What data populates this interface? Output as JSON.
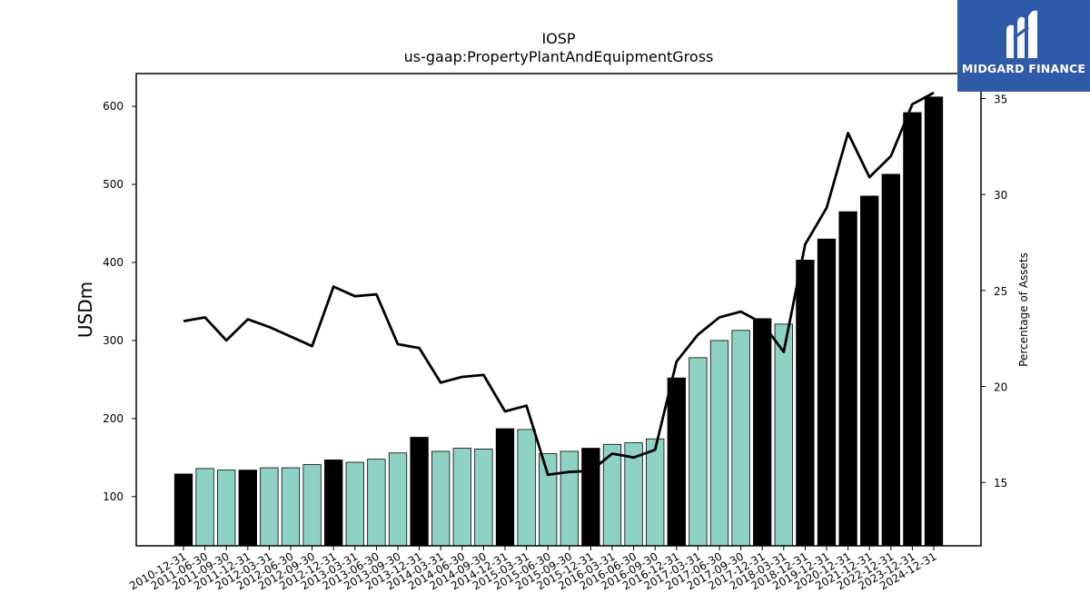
{
  "chart_data": {
    "type": "bar",
    "title": "IOSP",
    "subtitle": "us-gaap:PropertyPlantAndEquipmentGross",
    "ylabel": "USDm",
    "y2label": "Percentage of Assets",
    "ylim": [
      37,
      642
    ],
    "y2lim": [
      11.7,
      36.3
    ],
    "yticks": [
      100,
      200,
      300,
      400,
      500,
      600
    ],
    "y2ticks": [
      15,
      20,
      25,
      30,
      35
    ],
    "categories": [
      "2010-12-31",
      "2011-06-30",
      "2011-09-30",
      "2011-12-31",
      "2012-03-31",
      "2012-06-30",
      "2012-09-30",
      "2012-12-31",
      "2013-03-31",
      "2013-06-30",
      "2013-09-30",
      "2013-12-31",
      "2014-03-31",
      "2014-06-30",
      "2014-09-30",
      "2014-12-31",
      "2015-03-31",
      "2015-06-30",
      "2015-09-30",
      "2015-12-31",
      "2016-03-31",
      "2016-06-30",
      "2016-09-30",
      "2016-12-31",
      "2017-03-31",
      "2017-06-30",
      "2017-09-30",
      "2017-12-31",
      "2018-03-31",
      "2018-12-31",
      "2019-12-31",
      "2020-12-31",
      "2021-12-31",
      "2022-12-31",
      "2023-12-31",
      "2024-12-31"
    ],
    "series": [
      {
        "type": "bar",
        "axis": "left",
        "values": [
          129,
          136,
          134,
          134,
          137,
          137,
          141,
          147,
          144,
          148,
          156,
          176,
          158,
          162,
          161,
          187,
          186,
          155,
          158,
          162,
          167,
          169,
          174,
          252,
          278,
          300,
          313,
          328,
          321,
          403,
          430,
          465,
          485,
          513,
          592,
          612
        ],
        "annual": [
          true,
          false,
          false,
          true,
          false,
          false,
          false,
          true,
          false,
          false,
          false,
          true,
          false,
          false,
          false,
          true,
          false,
          false,
          false,
          true,
          false,
          false,
          false,
          true,
          false,
          false,
          false,
          true,
          false,
          true,
          true,
          true,
          true,
          true,
          true,
          true
        ]
      },
      {
        "type": "line",
        "axis": "right",
        "values": [
          23.4,
          23.6,
          22.4,
          23.5,
          23.1,
          22.6,
          22.1,
          25.2,
          24.7,
          24.8,
          22.2,
          22.0,
          20.2,
          20.5,
          20.6,
          18.7,
          19.0,
          15.4,
          15.55,
          15.6,
          16.5,
          16.3,
          16.7,
          21.3,
          22.7,
          23.6,
          23.9,
          23.3,
          21.8,
          27.4,
          29.3,
          33.2,
          30.9,
          32.0,
          34.7,
          35.3
        ]
      }
    ],
    "colors": {
      "annual_bar": "#000000",
      "quarter_bar": "#8ed2c5",
      "line": "#000000"
    },
    "grid": false,
    "legend": "none"
  },
  "brand": {
    "name": "MIDGARD FINANCE",
    "background": "#2f5aa8"
  }
}
